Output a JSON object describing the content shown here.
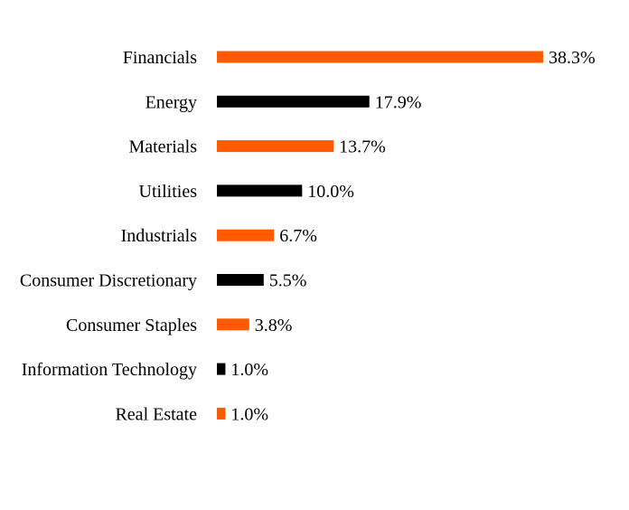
{
  "chart_data": {
    "type": "bar",
    "orientation": "horizontal",
    "categories": [
      "Financials",
      "Energy",
      "Materials",
      "Utilities",
      "Industrials",
      "Consumer Discretionary",
      "Consumer Staples",
      "Information Technology",
      "Real Estate"
    ],
    "values": [
      38.3,
      17.9,
      13.7,
      10.0,
      6.7,
      5.5,
      3.8,
      1.0,
      1.0
    ],
    "value_labels": [
      "38.3%",
      "17.9%",
      "13.7%",
      "10.0%",
      "6.7%",
      "5.5%",
      "3.8%",
      "1.0%",
      "1.0%"
    ],
    "bar_colors": [
      "#ff5a00",
      "#000000",
      "#ff5a00",
      "#000000",
      "#ff5a00",
      "#000000",
      "#ff5a00",
      "#000000",
      "#ff5a00"
    ],
    "xlim": [
      0,
      38.3
    ],
    "unit": "%",
    "grid": false,
    "legend": "none",
    "title": "",
    "xlabel": "",
    "ylabel": ""
  }
}
